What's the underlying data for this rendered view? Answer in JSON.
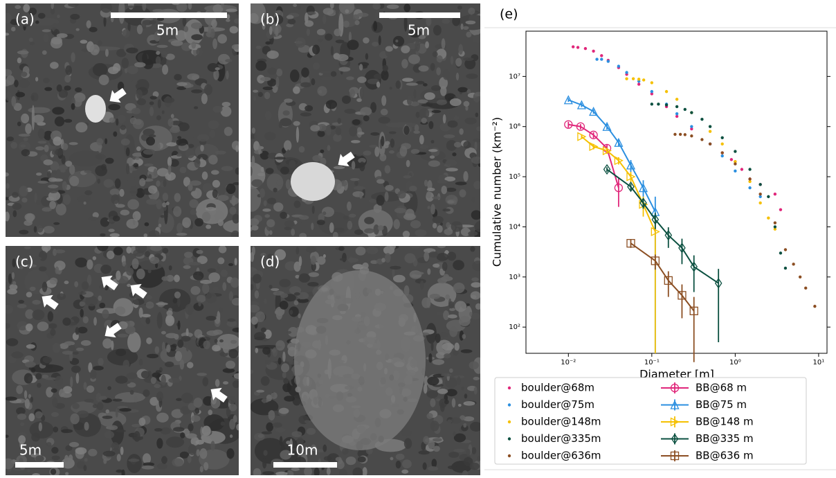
{
  "panels": [
    {
      "label": "(a)",
      "scale": "5m"
    },
    {
      "label": "(b)",
      "scale": "5m"
    },
    {
      "label": "(c)",
      "scale": "5m"
    },
    {
      "label": "(d)",
      "scale": "10m"
    }
  ],
  "chart_data": {
    "type": "scatter",
    "title": "(e)",
    "x_label": "Diameter [m]",
    "y_label": "Cumulative number (km⁻²)",
    "xscale": "log",
    "yscale": "log",
    "xlim": [
      0.0031,
      12.6
    ],
    "ylim": [
      30,
      80000000
    ],
    "xticks": [
      {
        "value": 0.01,
        "label": "10⁻²"
      },
      {
        "value": 0.1,
        "label": "10⁻¹"
      },
      {
        "value": 1,
        "label": "10⁰"
      },
      {
        "value": 10,
        "label": "10¹"
      }
    ],
    "yticks": [
      {
        "value": 100,
        "label": "10²"
      },
      {
        "value": 1000,
        "label": "10³"
      },
      {
        "value": 10000,
        "label": "10⁴"
      },
      {
        "value": 100000,
        "label": "10⁵"
      },
      {
        "value": 1000000,
        "label": "10⁶"
      },
      {
        "value": 10000000,
        "label": "10⁷"
      }
    ],
    "series": [
      {
        "name": "boulder@68m",
        "color": "#e0267a",
        "kind": "dots",
        "x": [
          0.0114,
          0.013,
          0.016,
          0.02,
          0.025,
          0.03,
          0.04,
          0.05,
          0.07,
          0.1,
          0.15,
          0.2,
          0.3,
          0.5,
          0.7,
          0.9,
          1.0,
          1.2,
          1.5,
          2.0,
          3.0,
          3.5
        ],
        "values": [
          39000000,
          38000000,
          36000000,
          32000000,
          26000000,
          21000000,
          15000000,
          11000000,
          7000000,
          4500000,
          2500000,
          1600000,
          900000,
          450000,
          300000,
          220000,
          200000,
          140000,
          90000,
          70000,
          45000,
          22000
        ]
      },
      {
        "name": "boulder@75m",
        "color": "#2b8fe0",
        "kind": "dots",
        "x": [
          0.022,
          0.025,
          0.03,
          0.04,
          0.05,
          0.07,
          0.1,
          0.15,
          0.2,
          0.3,
          0.5,
          0.7,
          1.0,
          1.5,
          2.0
        ],
        "values": [
          22000000,
          22000000,
          20000000,
          16000000,
          12000000,
          8000000,
          5000000,
          2800000,
          1800000,
          1000000,
          450000,
          260000,
          130000,
          60000,
          40000
        ]
      },
      {
        "name": "boulder@148m",
        "color": "#f5c000",
        "kind": "dots",
        "x": [
          0.05,
          0.06,
          0.07,
          0.08,
          0.1,
          0.15,
          0.2,
          0.3,
          0.5,
          0.7,
          1,
          1.5,
          2,
          2.5,
          3
        ],
        "values": [
          9000000,
          9000000,
          8800000,
          8500000,
          7500000,
          5000000,
          3500000,
          1900000,
          800000,
          450000,
          200000,
          80000,
          30000,
          15000,
          9000
        ]
      },
      {
        "name": "boulder@335m",
        "color": "#0b5040",
        "kind": "dots",
        "x": [
          0.1,
          0.12,
          0.15,
          0.2,
          0.25,
          0.3,
          0.4,
          0.5,
          0.7,
          1,
          1.5,
          2,
          2.5,
          3,
          3.5,
          4
        ],
        "values": [
          2800000,
          2800000,
          2700000,
          2500000,
          2200000,
          1900000,
          1400000,
          1000000,
          600000,
          320000,
          140000,
          70000,
          40000,
          10000,
          3000,
          1500
        ]
      },
      {
        "name": "boulder@636m",
        "color": "#8b4e22",
        "kind": "dots",
        "x": [
          0.19,
          0.22,
          0.25,
          0.3,
          0.4,
          0.5,
          0.7,
          1,
          1.5,
          2,
          3,
          4,
          5,
          6,
          7,
          9
        ],
        "values": [
          700000,
          700000,
          690000,
          650000,
          550000,
          450000,
          300000,
          180000,
          90000,
          45000,
          12000,
          3500,
          1800,
          1000,
          600,
          260
        ]
      },
      {
        "name": "BB@68 m",
        "color": "#e0267a",
        "kind": "errorline",
        "marker": "o",
        "x": [
          0.01,
          0.014,
          0.02,
          0.029,
          0.04
        ],
        "values": [
          1100000,
          1000000,
          680000,
          370000,
          60000
        ],
        "errors": [
          150000,
          120000,
          90000,
          70000,
          35000
        ]
      },
      {
        "name": "BB@75 m",
        "color": "#2b8fe0",
        "kind": "errorline",
        "marker": "^",
        "x": [
          0.01,
          0.0144,
          0.02,
          0.029,
          0.04,
          0.056,
          0.079,
          0.11
        ],
        "values": [
          3400000,
          2700000,
          2000000,
          1000000,
          480000,
          170000,
          60000,
          20000
        ],
        "errors": [
          300000,
          250000,
          200000,
          130000,
          80000,
          45000,
          25000,
          20000
        ]
      },
      {
        "name": "BB@148 m",
        "color": "#f5c000",
        "kind": "errorline",
        "marker": ">",
        "x": [
          0.0144,
          0.02,
          0.029,
          0.04,
          0.056,
          0.079,
          0.11
        ],
        "values": [
          630000,
          400000,
          330000,
          210000,
          100000,
          28000,
          8000
        ],
        "errors": [
          60000,
          50000,
          45000,
          35000,
          25000,
          12000,
          8000
        ]
      },
      {
        "name": "BB@335 m",
        "color": "#0b5040",
        "kind": "errorline",
        "marker": "d",
        "x": [
          0.029,
          0.056,
          0.079,
          0.11,
          0.158,
          0.23,
          0.32,
          0.63
        ],
        "values": [
          140000,
          63000,
          30000,
          14000,
          6800,
          3800,
          1600,
          750
        ],
        "errors": [
          15000,
          9000,
          7000,
          5000,
          3000,
          2000,
          1100,
          700
        ]
      },
      {
        "name": "BB@636 m",
        "color": "#8b4e22",
        "kind": "errorline",
        "marker": "s",
        "x": [
          0.056,
          0.11,
          0.158,
          0.23,
          0.32
        ],
        "values": [
          4700,
          2100,
          850,
          430,
          210
        ],
        "errors": [
          900,
          700,
          450,
          280,
          190
        ]
      }
    ]
  }
}
